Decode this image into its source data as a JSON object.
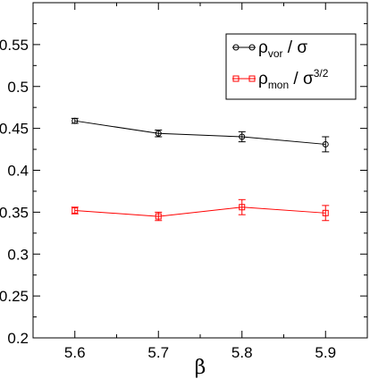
{
  "chart_data": {
    "type": "line",
    "title": "",
    "xlabel": "β",
    "ylabel": "",
    "xlim": [
      5.55,
      5.95
    ],
    "ylim": [
      0.2,
      0.6
    ],
    "xticks": [
      "5.6",
      "5.7",
      "5.8",
      "5.9"
    ],
    "yticks": [
      "0.2",
      "0.25",
      "0.3",
      "0.35",
      "0.4",
      "0.45",
      "0.5",
      "0.55"
    ],
    "grid": false,
    "legend_position": "top-right",
    "x": [
      5.6,
      5.7,
      5.8,
      5.9
    ],
    "series": [
      {
        "name": "ρvor / σ",
        "label_parts": {
          "base": "ρ",
          "sub": "vor",
          "rest": " / σ",
          "sup": ""
        },
        "color": "#000000",
        "marker": "circle",
        "values": [
          0.459,
          0.444,
          0.44,
          0.431
        ],
        "errors": [
          0.003,
          0.004,
          0.006,
          0.009
        ]
      },
      {
        "name": "ρmon / σ3/2",
        "label_parts": {
          "base": "ρ",
          "sub": "mon",
          "rest": " / σ",
          "sup": "3/2"
        },
        "color": "#ff0000",
        "marker": "square",
        "values": [
          0.352,
          0.345,
          0.356,
          0.349
        ],
        "errors": [
          0.004,
          0.005,
          0.009,
          0.009
        ]
      }
    ]
  }
}
